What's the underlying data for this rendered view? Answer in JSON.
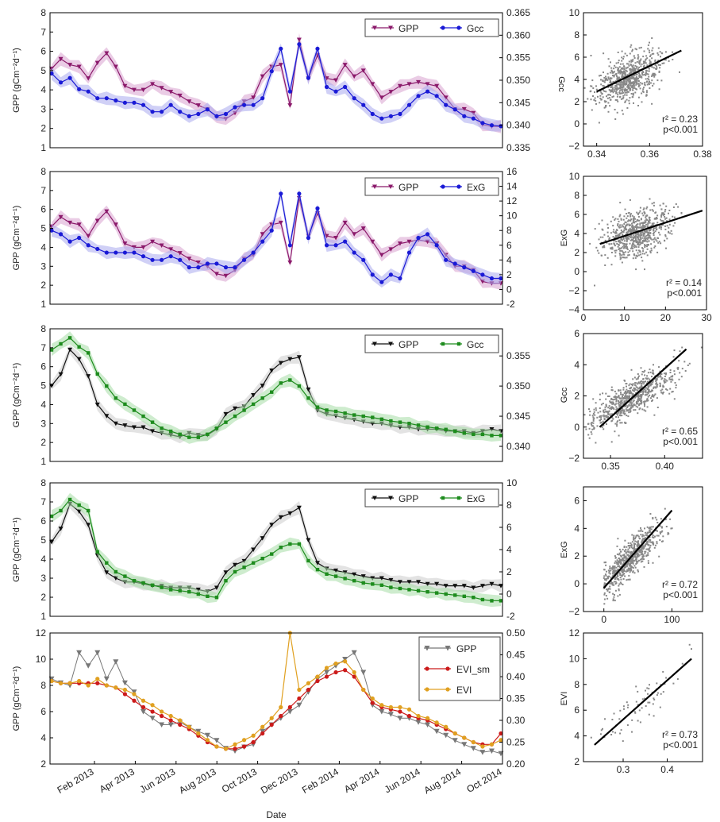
{
  "figure": {
    "xlabel": "Date",
    "date_ticks": [
      "Feb 2013",
      "Apr 2013",
      "Jun 2013",
      "Aug 2013",
      "Oct 2013",
      "Dec 2013",
      "Feb 2014",
      "Apr 2014",
      "Jun 2014",
      "Aug 2014",
      "Oct 2014"
    ],
    "colors": {
      "gpp_purple": "#8b1a6b",
      "gpp_purple_band": "#d9a3cf",
      "gcc_blue": "#1a1ad6",
      "gcc_blue_band": "#a9a9ef",
      "gpp_black": "#111111",
      "gpp_grey_band": "#cccccc",
      "green": "#1e8c1e",
      "green_band": "#a6dca6",
      "gpp_grey": "#777777",
      "evi_red": "#cc1a1a",
      "evi_orange": "#e0a020",
      "scatter": "#888888"
    }
  },
  "chart_data": [
    {
      "type": "line",
      "ylabel": "GPP (gCm⁻²d⁻¹)",
      "ylim": [
        1,
        8
      ],
      "yticks": [
        "1",
        "2",
        "3",
        "4",
        "5",
        "6",
        "7",
        "8"
      ],
      "y2lim": [
        0.335,
        0.365
      ],
      "y2ticks": [
        "0.335",
        "0.340",
        "0.345",
        "0.350",
        "0.355",
        "0.360",
        "0.365"
      ],
      "legend": "top-right",
      "series": [
        {
          "name": "GPP",
          "axis": "left",
          "color": "gpp_purple",
          "marker": "tri",
          "values": [
            5.1,
            5.6,
            5.3,
            5.2,
            4.6,
            5.4,
            5.9,
            5.2,
            4.2,
            4.0,
            4.0,
            4.3,
            4.1,
            3.9,
            3.7,
            3.4,
            3.2,
            3.0,
            2.6,
            2.5,
            2.8,
            3.4,
            3.6,
            4.7,
            5.2,
            5.3,
            3.2,
            6.6,
            4.6,
            5.8,
            4.6,
            4.5,
            5.3,
            4.7,
            5.0,
            4.3,
            3.6,
            3.9,
            4.2,
            4.3,
            4.4,
            4.3,
            4.2,
            3.6,
            3.0,
            3.0,
            2.8,
            2.2,
            2.1,
            2.1
          ]
        },
        {
          "name": "Gcc",
          "axis": "right",
          "color": "gcc_blue",
          "marker": "circle",
          "values": [
            0.3515,
            0.3495,
            0.3505,
            0.348,
            0.3475,
            0.346,
            0.346,
            0.3455,
            0.345,
            0.345,
            0.3445,
            0.343,
            0.343,
            0.3445,
            0.343,
            0.342,
            0.3425,
            0.3435,
            0.342,
            0.3425,
            0.344,
            0.3445,
            0.3445,
            0.346,
            0.352,
            0.357,
            0.3475,
            0.358,
            0.3505,
            0.357,
            0.3485,
            0.3475,
            0.3485,
            0.346,
            0.3445,
            0.3425,
            0.3415,
            0.342,
            0.3425,
            0.3445,
            0.3465,
            0.3475,
            0.3465,
            0.3445,
            0.3435,
            0.342,
            0.3415,
            0.3405,
            0.34,
            0.3398
          ]
        }
      ],
      "n": 50,
      "scatter": {
        "xlim": [
          0.335,
          0.38
        ],
        "ylim": [
          -2,
          10
        ],
        "xticks": [
          0.34,
          0.36,
          0.38
        ],
        "xtick_labels": [
          "0.34",
          "0.36",
          "0.38"
        ],
        "yticks": [
          -2,
          0,
          2,
          4,
          6,
          8,
          10
        ],
        "ytick_labels": [
          "−2",
          "0",
          "2",
          "4",
          "6",
          "8",
          "10"
        ],
        "ylabel": "Gcc",
        "line": [
          [
            0.34,
            2.9
          ],
          [
            0.372,
            6.6
          ]
        ],
        "cx": 0.352,
        "cy": 4.0,
        "sx": 0.006,
        "sy": 1.2,
        "r2": "r² = 0.23",
        "p": "p<0.001"
      }
    },
    {
      "type": "line",
      "ylabel": "GPP (gCm⁻²d⁻¹)",
      "ylim": [
        1,
        8
      ],
      "yticks": [
        "1",
        "2",
        "3",
        "4",
        "5",
        "6",
        "7",
        "8"
      ],
      "y2lim": [
        -2,
        16
      ],
      "y2ticks": [
        "-2",
        "0",
        "2",
        "4",
        "6",
        "8",
        "10",
        "12",
        "14",
        "16"
      ],
      "legend": "top-right",
      "series": [
        {
          "name": "GPP",
          "axis": "left",
          "color": "gpp_purple",
          "marker": "tri",
          "values": [
            5.1,
            5.6,
            5.3,
            5.2,
            4.6,
            5.4,
            5.9,
            5.2,
            4.2,
            4.0,
            4.0,
            4.3,
            4.1,
            3.9,
            3.7,
            3.4,
            3.2,
            3.0,
            2.6,
            2.5,
            2.8,
            3.4,
            3.6,
            4.7,
            5.2,
            5.3,
            3.2,
            6.6,
            4.6,
            5.8,
            4.6,
            4.5,
            5.3,
            4.7,
            5.0,
            4.3,
            3.6,
            3.9,
            4.2,
            4.3,
            4.4,
            4.3,
            4.2,
            3.6,
            3.0,
            3.0,
            2.8,
            2.2,
            2.1,
            2.1
          ]
        },
        {
          "name": "ExG",
          "axis": "right",
          "color": "gcc_blue",
          "marker": "circle",
          "values": [
            8.0,
            7.5,
            6.5,
            7.0,
            6.0,
            5.5,
            5.0,
            5.0,
            5.0,
            5.0,
            4.5,
            4.0,
            4.0,
            4.5,
            4.0,
            3.0,
            3.0,
            3.5,
            3.5,
            3.0,
            3.0,
            4.0,
            5.0,
            6.5,
            8.0,
            13.0,
            6.0,
            13.0,
            7.0,
            11.0,
            6.0,
            6.0,
            6.5,
            5.0,
            4.0,
            2.0,
            1.0,
            2.0,
            1.5,
            5.0,
            7.0,
            7.5,
            6.0,
            4.0,
            3.5,
            3.0,
            2.5,
            2.0,
            1.5,
            1.5
          ]
        }
      ],
      "n": 50,
      "scatter": {
        "xlim": [
          0,
          30
        ],
        "ylim": [
          -4,
          10
        ],
        "xticks": [
          0,
          10,
          20,
          30
        ],
        "xtick_labels": [
          "0",
          "10",
          "20",
          "30"
        ],
        "yticks": [
          -4,
          -2,
          0,
          2,
          4,
          6,
          8,
          10
        ],
        "ytick_labels": [
          "−4",
          "−2",
          "0",
          "2",
          "4",
          "6",
          "8",
          "10"
        ],
        "ylabel": "ExG",
        "line": [
          [
            4,
            2.9
          ],
          [
            29,
            6.4
          ]
        ],
        "cx": 13,
        "cy": 4.0,
        "sx": 4,
        "sy": 1.3,
        "r2": "r² = 0.14",
        "p": "p<0.001"
      }
    },
    {
      "type": "line",
      "ylabel": "GPP (gCm⁻²d⁻¹)",
      "ylim": [
        1,
        8
      ],
      "yticks": [
        "1",
        "2",
        "3",
        "4",
        "5",
        "6",
        "7",
        "8"
      ],
      "y2lim": [
        0.3375,
        0.3595
      ],
      "y2ticks": [
        "0.340",
        "0.345",
        "0.350",
        "0.355"
      ],
      "y2tickvals": [
        0.34,
        0.345,
        0.35,
        0.355
      ],
      "legend": "top-right",
      "series": [
        {
          "name": "GPP",
          "axis": "left",
          "color": "gpp_black",
          "marker": "tri",
          "values": [
            5.0,
            5.6,
            6.9,
            6.4,
            5.5,
            4.0,
            3.4,
            3.0,
            2.9,
            2.8,
            2.8,
            2.6,
            2.5,
            2.4,
            2.3,
            2.5,
            2.4,
            2.4,
            2.7,
            3.5,
            3.8,
            3.9,
            4.5,
            5.0,
            5.8,
            6.2,
            6.4,
            6.5,
            4.8,
            3.7,
            3.5,
            3.4,
            3.3,
            3.2,
            3.1,
            3.0,
            3.0,
            2.9,
            2.8,
            2.8,
            2.7,
            2.7,
            2.7,
            2.6,
            2.6,
            2.6,
            2.5,
            2.6,
            2.7,
            2.6
          ]
        },
        {
          "name": "Gcc",
          "axis": "right",
          "color": "green",
          "marker": "square",
          "values": [
            0.356,
            0.357,
            0.358,
            0.3565,
            0.3555,
            0.352,
            0.35,
            0.348,
            0.347,
            0.346,
            0.345,
            0.344,
            0.343,
            0.3425,
            0.342,
            0.3415,
            0.3415,
            0.342,
            0.343,
            0.344,
            0.345,
            0.346,
            0.347,
            0.348,
            0.349,
            0.3505,
            0.351,
            0.35,
            0.348,
            0.3465,
            0.346,
            0.3458,
            0.3455,
            0.3452,
            0.345,
            0.3448,
            0.3445,
            0.3442,
            0.344,
            0.3438,
            0.3435,
            0.3432,
            0.343,
            0.3428,
            0.3425,
            0.3422,
            0.342,
            0.342,
            0.3418,
            0.3418
          ]
        }
      ],
      "n": 50,
      "scatter": {
        "xlim": [
          0.325,
          0.435
        ],
        "ylim": [
          -2,
          6
        ],
        "xticks": [
          0.35,
          0.4
        ],
        "xtick_labels": [
          "0.35",
          "0.40"
        ],
        "yticks": [
          -2,
          0,
          2,
          4,
          6
        ],
        "ytick_labels": [
          "−2",
          "0",
          "2",
          "4",
          "6"
        ],
        "ylabel": "Gcc",
        "line": [
          [
            0.34,
            0.0
          ],
          [
            0.42,
            5.0
          ]
        ],
        "cx": 0.37,
        "cy": 1.9,
        "sx": 0.02,
        "sy": 1.0,
        "corr": 0.8,
        "r2": "r² = 0.65",
        "p": "p<0.001"
      }
    },
    {
      "type": "line",
      "ylabel": "GPP (gCm⁻²d⁻¹)",
      "ylim": [
        1,
        8
      ],
      "yticks": [
        "1",
        "2",
        "3",
        "4",
        "5",
        "6",
        "7",
        "8"
      ],
      "y2lim": [
        -2,
        10
      ],
      "y2ticks": [
        "-2",
        "0",
        "2",
        "4",
        "6",
        "8",
        "10"
      ],
      "legend": "top-right",
      "series": [
        {
          "name": "GPP",
          "axis": "left",
          "color": "gpp_black",
          "marker": "tri",
          "values": [
            4.9,
            5.6,
            6.9,
            6.5,
            5.8,
            4.2,
            3.3,
            3.0,
            2.8,
            2.8,
            2.7,
            2.6,
            2.6,
            2.5,
            2.5,
            2.5,
            2.4,
            2.3,
            2.5,
            3.3,
            3.7,
            3.9,
            4.5,
            5.1,
            5.8,
            6.2,
            6.4,
            6.7,
            5.0,
            3.8,
            3.5,
            3.4,
            3.3,
            3.2,
            3.1,
            3.0,
            3.0,
            2.9,
            2.8,
            2.8,
            2.8,
            2.7,
            2.7,
            2.6,
            2.6,
            2.6,
            2.5,
            2.6,
            2.7,
            2.6
          ]
        },
        {
          "name": "ExG",
          "axis": "right",
          "color": "green",
          "marker": "square",
          "values": [
            7.0,
            7.5,
            8.5,
            8.0,
            7.5,
            3.8,
            2.8,
            2.0,
            1.6,
            1.2,
            1.0,
            0.8,
            0.6,
            0.4,
            0.3,
            0.2,
            0.0,
            -0.2,
            -0.3,
            1.2,
            2.0,
            2.4,
            2.8,
            3.2,
            3.6,
            4.2,
            4.5,
            4.5,
            3.0,
            2.2,
            1.8,
            1.6,
            1.4,
            1.2,
            1.0,
            0.9,
            0.8,
            0.6,
            0.5,
            0.4,
            0.3,
            0.2,
            0.1,
            0.0,
            -0.1,
            -0.2,
            -0.3,
            -0.5,
            -0.6,
            -0.6
          ]
        }
      ],
      "n": 50,
      "scatter": {
        "xlim": [
          -30,
          145
        ],
        "ylim": [
          -2,
          7
        ],
        "xticks": [
          0,
          100
        ],
        "xtick_labels": [
          "0",
          "100"
        ],
        "yticks": [
          -2,
          0,
          2,
          4,
          6
        ],
        "ytick_labels": [
          "−2",
          "0",
          "2",
          "4",
          "6"
        ],
        "ylabel": "ExG",
        "line": [
          [
            0,
            -0.3
          ],
          [
            100,
            5.3
          ]
        ],
        "cx": 40,
        "cy": 1.9,
        "sx": 22,
        "sy": 1.2,
        "corr": 0.85,
        "r2": "r² = 0.72",
        "p": "p<0.001"
      }
    },
    {
      "type": "line",
      "ylabel": "GPP (gCm⁻²d⁻¹)",
      "ylim": [
        2,
        12
      ],
      "yticks": [
        "2",
        "4",
        "6",
        "8",
        "10",
        "12"
      ],
      "y2lim": [
        0.2,
        0.5
      ],
      "y2ticks": [
        "0.20",
        "0.25",
        "0.30",
        "0.35",
        "0.40",
        "0.45",
        "0.50"
      ],
      "legend": "top-right",
      "series": [
        {
          "name": "GPP",
          "axis": "left",
          "color": "gpp_grey",
          "marker": "tri_down",
          "values": [
            8.5,
            8.2,
            8.0,
            10.5,
            9.5,
            10.5,
            8.5,
            9.8,
            8.2,
            7.5,
            6.0,
            5.5,
            5.0,
            5.0,
            5.2,
            4.8,
            4.5,
            4.2,
            3.8,
            3.2,
            3.0,
            3.3,
            3.5,
            4.5,
            5.0,
            5.5,
            6.0,
            6.5,
            7.5,
            8.5,
            9.0,
            9.5,
            10.0,
            10.5,
            9.0,
            6.5,
            6.0,
            5.8,
            5.5,
            5.5,
            5.2,
            5.0,
            4.5,
            4.2,
            3.8,
            3.5,
            3.2,
            2.9,
            3.0,
            2.8
          ]
        },
        {
          "name": "EVI_sm",
          "axis": "right",
          "color": "evi_red",
          "marker": "circle",
          "values": [
            0.39,
            0.385,
            0.385,
            0.385,
            0.385,
            0.385,
            0.38,
            0.375,
            0.36,
            0.345,
            0.33,
            0.32,
            0.31,
            0.3,
            0.29,
            0.28,
            0.265,
            0.25,
            0.24,
            0.235,
            0.235,
            0.24,
            0.25,
            0.27,
            0.29,
            0.31,
            0.33,
            0.35,
            0.37,
            0.39,
            0.4,
            0.41,
            0.415,
            0.4,
            0.37,
            0.34,
            0.33,
            0.325,
            0.32,
            0.31,
            0.305,
            0.3,
            0.29,
            0.28,
            0.27,
            0.26,
            0.25,
            0.245,
            0.245,
            0.27
          ]
        },
        {
          "name": "EVI",
          "axis": "right",
          "color": "evi_orange",
          "marker": "circle",
          "values": [
            0.39,
            0.385,
            0.385,
            0.39,
            0.38,
            0.395,
            0.38,
            0.375,
            0.37,
            0.36,
            0.345,
            0.335,
            0.32,
            0.31,
            0.3,
            0.285,
            0.27,
            0.255,
            0.24,
            0.235,
            0.245,
            0.255,
            0.265,
            0.285,
            0.305,
            0.33,
            0.5,
            0.37,
            0.385,
            0.4,
            0.42,
            0.43,
            0.435,
            0.41,
            0.37,
            0.35,
            0.335,
            0.33,
            0.33,
            0.325,
            0.31,
            0.305,
            0.295,
            0.285,
            0.27,
            0.26,
            0.25,
            0.24,
            0.245,
            0.255
          ]
        }
      ],
      "n": 50,
      "scatter": {
        "xlim": [
          0.21,
          0.48
        ],
        "ylim": [
          2,
          12
        ],
        "xticks": [
          0.3,
          0.4
        ],
        "xtick_labels": [
          "0.3",
          "0.4"
        ],
        "yticks": [
          2,
          4,
          6,
          8,
          10,
          12
        ],
        "ytick_labels": [
          "2",
          "4",
          "6",
          "8",
          "10",
          "12"
        ],
        "ylabel": "EVI",
        "line": [
          [
            0.235,
            3.3
          ],
          [
            0.455,
            10.0
          ]
        ],
        "cx": 0.34,
        "cy": 6.4,
        "sx": 0.05,
        "sy": 1.6,
        "corr": 0.86,
        "count": 70,
        "r2": "r² = 0.73",
        "p": "p<0.001"
      }
    }
  ]
}
